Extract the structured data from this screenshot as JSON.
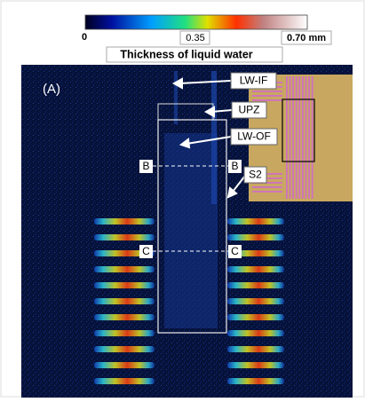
{
  "colorbar": {
    "ticks": [
      "0",
      "0.35",
      "0.70 mm"
    ],
    "title": "Thickness of liquid water"
  },
  "panel": {
    "label": "(A)",
    "annotations": [
      "LW-IF",
      "UPZ",
      "LW-OF",
      "S2"
    ],
    "section_labels": [
      "B",
      "B",
      "C",
      "C"
    ]
  }
}
